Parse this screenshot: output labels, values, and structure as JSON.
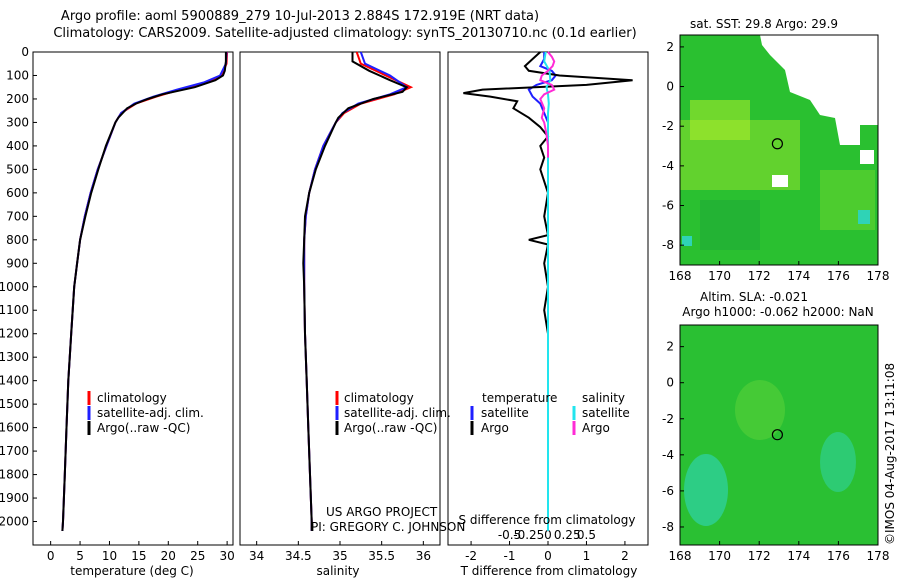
{
  "title": {
    "line1": "Argo profile: aoml 5900889_279 10-Jul-2013 2.884S 172.919E (NRT data)",
    "line2": "Climatology: CARS2009. Satellite-adjusted climatology: synTS_20130710.nc (0.1d earlier)"
  },
  "colors": {
    "climatology": "#ff0000",
    "satellite": "#1f1fff",
    "argo": "#000000",
    "sal_satellite": "#22e5ee",
    "sal_argo": "#ff2bd6"
  },
  "chart_data": [
    {
      "type": "line",
      "name": "temperature-profile",
      "xlabel": "temperature (deg C)",
      "ylabel": "",
      "xlim": [
        -3,
        31
      ],
      "ylim": [
        2100,
        0
      ],
      "xticks": [
        0,
        5,
        10,
        15,
        20,
        25,
        30
      ],
      "yticks": [
        0,
        100,
        200,
        300,
        400,
        500,
        600,
        700,
        800,
        900,
        1000,
        1100,
        1200,
        1300,
        1400,
        1500,
        1600,
        1700,
        1800,
        1900,
        2000
      ],
      "legend": [
        "climatology",
        "satellite-adj. clim.",
        "Argo(..raw -QC)"
      ],
      "series": [
        {
          "name": "climatology",
          "depth": [
            0,
            50,
            100,
            130,
            160,
            190,
            220,
            260,
            300,
            400,
            500,
            600,
            700,
            800,
            900,
            1000,
            1200,
            1400,
            1600,
            1800,
            2000,
            2040
          ],
          "values": [
            30.0,
            29.9,
            29.0,
            26.5,
            22.0,
            18.0,
            14.5,
            12.0,
            11.0,
            9.5,
            8.0,
            6.8,
            5.8,
            5.0,
            4.5,
            4.0,
            3.5,
            3.0,
            2.7,
            2.4,
            2.1,
            2.0
          ]
        },
        {
          "name": "satellite",
          "depth": [
            0,
            50,
            100,
            130,
            160,
            190,
            220,
            260,
            300,
            400,
            500,
            600,
            700,
            800,
            900,
            1000,
            1200,
            1400,
            1600,
            1800,
            2000,
            2040
          ],
          "values": [
            29.9,
            29.8,
            28.8,
            26.0,
            21.5,
            17.5,
            14.2,
            12.0,
            11.0,
            9.5,
            8.0,
            6.8,
            5.8,
            5.0,
            4.5,
            4.0,
            3.5,
            3.0,
            2.7,
            2.4,
            2.1,
            2.0
          ]
        },
        {
          "name": "argo",
          "depth": [
            0,
            40,
            80,
            100,
            120,
            150,
            180,
            200,
            220,
            240,
            280,
            300,
            400,
            500,
            600,
            700,
            800,
            900,
            1000,
            1200,
            1400,
            1600,
            1800,
            2000,
            2040
          ],
          "values": [
            29.8,
            29.8,
            29.6,
            29.3,
            28.0,
            24.5,
            19.0,
            16.5,
            14.5,
            13.0,
            11.5,
            11.0,
            9.4,
            8.1,
            6.9,
            5.9,
            5.0,
            4.5,
            4.0,
            3.5,
            3.0,
            2.7,
            2.4,
            2.1,
            2.0
          ]
        }
      ]
    },
    {
      "type": "line",
      "name": "salinity-profile",
      "xlabel": "salinity",
      "xlim": [
        33.8,
        36.2
      ],
      "ylim": [
        2100,
        0
      ],
      "xticks": [
        34,
        34.5,
        35,
        35.5,
        36
      ],
      "legend": [
        "climatology",
        "satellite-adj. clim.",
        "Argo(..raw -QC)"
      ],
      "annotation": [
        "US ARGO PROJECT",
        "PI: GREGORY C. JOHNSON"
      ],
      "series": [
        {
          "name": "climatology",
          "depth": [
            0,
            50,
            100,
            150,
            180,
            220,
            260,
            300,
            400,
            500,
            600,
            700,
            800,
            900,
            1000,
            1200,
            1400,
            1600,
            1800,
            2000,
            2040
          ],
          "values": [
            35.2,
            35.25,
            35.55,
            35.85,
            35.65,
            35.25,
            35.05,
            34.95,
            34.8,
            34.7,
            34.63,
            34.59,
            34.57,
            34.57,
            34.57,
            34.58,
            34.6,
            34.62,
            34.64,
            34.66,
            34.66
          ]
        },
        {
          "name": "satellite",
          "depth": [
            0,
            50,
            100,
            150,
            180,
            220,
            260,
            300,
            400,
            500,
            600,
            700,
            800,
            900,
            1000,
            1200,
            1400,
            1600,
            1800,
            2000,
            2040
          ],
          "values": [
            35.25,
            35.3,
            35.6,
            35.8,
            35.6,
            35.22,
            35.03,
            34.95,
            34.8,
            34.7,
            34.63,
            34.59,
            34.57,
            34.57,
            34.57,
            34.58,
            34.6,
            34.62,
            34.64,
            34.66,
            34.66
          ]
        },
        {
          "name": "argo",
          "depth": [
            0,
            40,
            80,
            120,
            150,
            170,
            200,
            240,
            280,
            300,
            400,
            500,
            600,
            700,
            800,
            900,
            1000,
            1200,
            1400,
            1600,
            1800,
            2000,
            2040
          ],
          "values": [
            35.15,
            35.15,
            35.35,
            35.6,
            35.8,
            35.75,
            35.4,
            35.1,
            34.98,
            34.95,
            34.82,
            34.71,
            34.63,
            34.58,
            34.57,
            34.56,
            34.57,
            34.58,
            34.6,
            34.62,
            34.64,
            34.66,
            34.66
          ]
        }
      ]
    },
    {
      "type": "line",
      "name": "difference-profile",
      "xlabel": "T difference from climatology",
      "top_axis_label": "S difference from climatology",
      "xlim": [
        -2.6,
        2.6
      ],
      "ylim": [
        2100,
        0
      ],
      "xticks": [
        -2,
        -1,
        0,
        1,
        2
      ],
      "top_ticks": [
        "-0.5",
        "-0.25",
        "0",
        "0.25",
        "0.5"
      ],
      "legend_temperature_title": "temperature",
      "legend_salinity_title": "salinity",
      "legend_labels": [
        "satellite",
        "Argo",
        "satellite",
        "Argo"
      ],
      "series": [
        {
          "name": "temperature-satellite",
          "depth": [
            0,
            30,
            60,
            80,
            100,
            120,
            140,
            160,
            190,
            220,
            260,
            300,
            400,
            2040
          ],
          "values": [
            -0.1,
            -0.1,
            -0.2,
            0.1,
            0.2,
            0.1,
            -0.3,
            -0.5,
            -0.4,
            -0.2,
            -0.1,
            0.0,
            0.0,
            0.0
          ]
        },
        {
          "name": "temperature-argo",
          "depth": [
            0,
            30,
            60,
            80,
            100,
            120,
            140,
            160,
            175,
            190,
            210,
            240,
            280,
            320,
            360,
            400,
            450,
            500,
            600,
            700,
            780,
            800,
            820,
            900,
            1000,
            1100,
            1200,
            1400,
            1600,
            1800,
            2040
          ],
          "values": [
            -0.2,
            -0.4,
            -0.6,
            -0.5,
            0.3,
            2.2,
            1.0,
            -1.7,
            -2.2,
            -1.5,
            -0.8,
            -0.9,
            -0.5,
            -0.2,
            0.0,
            -0.2,
            -0.1,
            -0.2,
            0.0,
            -0.1,
            0.0,
            -0.5,
            0.0,
            -0.1,
            0.0,
            -0.1,
            0.0,
            0.0,
            0.0,
            0.0,
            0.0
          ]
        },
        {
          "name": "salinity-satellite",
          "depth": [
            0,
            40,
            80,
            120,
            150,
            180,
            220,
            260,
            300,
            400,
            2040
          ],
          "values": [
            -0.03,
            -0.05,
            0.02,
            0.03,
            -0.02,
            0.0,
            0.01,
            0.0,
            0.0,
            0.0,
            0.0
          ]
        },
        {
          "name": "salinity-argo",
          "depth": [
            0,
            20,
            40,
            60,
            80,
            100,
            120,
            140,
            160,
            180,
            200,
            240,
            280,
            300,
            350,
            400,
            450
          ],
          "values": [
            0.0,
            0.05,
            0.08,
            0.06,
            0.0,
            -0.08,
            -0.1,
            0.05,
            0.08,
            -0.05,
            -0.1,
            -0.05,
            -0.08,
            -0.05,
            -0.02,
            0.0,
            0.0
          ]
        }
      ]
    },
    {
      "type": "heatmap",
      "name": "sst-map",
      "title": "sat. SST: 29.8 Argo: 29.9",
      "xlim": [
        168,
        178
      ],
      "ylim": [
        -9,
        2.6
      ],
      "xticks": [
        168,
        170,
        172,
        174,
        176,
        178
      ],
      "yticks": [
        2,
        0,
        -2,
        -4,
        -6,
        -8
      ],
      "marker": [
        172.919,
        -2.884
      ]
    },
    {
      "type": "heatmap",
      "name": "sla-map",
      "title": "Altim. SLA: -0.021",
      "subtitle": "Argo h1000: -0.062 h2000: NaN",
      "xlim": [
        168,
        178
      ],
      "ylim": [
        -9,
        3.2
      ],
      "xticks": [
        168,
        170,
        172,
        174,
        176,
        178
      ],
      "yticks": [
        2,
        0,
        -2,
        -4,
        -6,
        -8
      ],
      "marker": [
        172.919,
        -2.884
      ]
    }
  ],
  "watermark": "©IMOS 04-Aug-2017 13:11:08"
}
